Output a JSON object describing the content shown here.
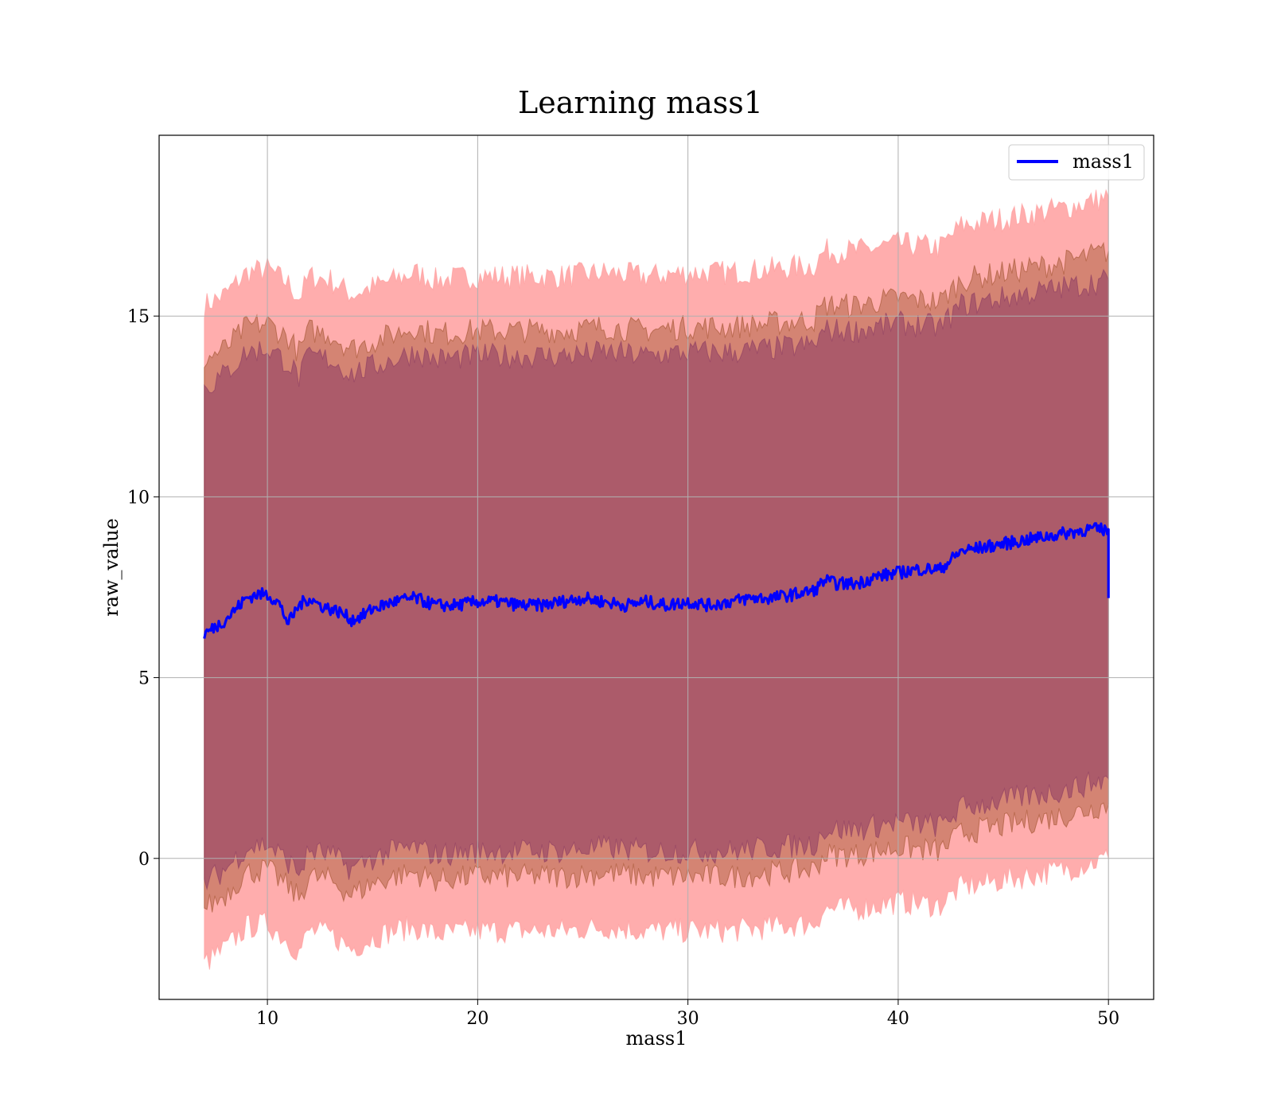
{
  "chart_data": {
    "type": "line",
    "title": "Learning mass1",
    "xlabel": "mass1",
    "ylabel": "raw_value",
    "xlim": [
      4.85,
      52.15
    ],
    "ylim": [
      -3.9,
      20.0
    ],
    "xticks": [
      10,
      20,
      30,
      40,
      50
    ],
    "xtick_labels": [
      "10",
      "20",
      "30",
      "40",
      "50"
    ],
    "yticks": [
      0,
      5,
      10,
      15
    ],
    "ytick_labels": [
      "0",
      "5",
      "10",
      "15"
    ],
    "grid": true,
    "legend_position": "top-right",
    "colors": {
      "line": "#0000ff",
      "band": "#ff0000",
      "band_upper": "#ff9999",
      "band_inner": "#8b3a62",
      "band_mid": "#a0522d",
      "grid": "#b0b0b0",
      "axes": "#000000"
    },
    "series": [
      {
        "name": "mass1",
        "x": [
          7.0,
          7.5,
          8.0,
          8.5,
          9.0,
          9.5,
          10.0,
          10.5,
          11.0,
          11.5,
          12.0,
          12.5,
          13.0,
          13.5,
          14.0,
          14.5,
          15.0,
          16.0,
          17.0,
          18.0,
          19.0,
          20.0,
          21.0,
          22.0,
          23.0,
          24.0,
          25.0,
          26.0,
          27.0,
          28.0,
          29.0,
          30.0,
          31.0,
          32.0,
          33.0,
          34.0,
          35.0,
          36.0,
          36.5,
          37.0,
          38.0,
          39.0,
          40.0,
          41.0,
          42.0,
          43.0,
          44.0,
          45.0,
          46.0,
          47.0,
          48.0,
          49.0,
          50.0
        ],
        "y": [
          6.2,
          6.4,
          6.6,
          6.9,
          7.2,
          7.3,
          7.3,
          7.1,
          6.5,
          7.0,
          7.2,
          7.0,
          6.9,
          6.8,
          6.6,
          6.7,
          6.9,
          7.1,
          7.2,
          7.0,
          7.0,
          7.1,
          7.1,
          7.0,
          7.0,
          7.1,
          7.2,
          7.1,
          7.0,
          7.1,
          7.0,
          7.1,
          7.0,
          7.1,
          7.2,
          7.2,
          7.3,
          7.4,
          7.7,
          7.6,
          7.6,
          7.8,
          7.9,
          8.0,
          8.0,
          8.5,
          8.6,
          8.7,
          8.8,
          8.9,
          9.0,
          9.1,
          9.1
        ],
        "end_drop": 7.2
      }
    ],
    "bands": [
      {
        "role": "outer",
        "x": [
          7.0,
          8.0,
          9.0,
          10.0,
          11.0,
          11.5,
          12.0,
          13.0,
          14.0,
          15.0,
          16.0,
          17.0,
          18.0,
          20.0,
          22.0,
          24.0,
          26.0,
          28.0,
          30.0,
          32.0,
          34.0,
          36.0,
          36.5,
          38.0,
          40.0,
          42.0,
          43.0,
          44.0,
          46.0,
          48.0,
          50.0
        ],
        "upper": [
          15.3,
          15.6,
          16.2,
          16.3,
          15.9,
          15.5,
          16.1,
          16.0,
          15.6,
          15.8,
          16.0,
          16.2,
          16.0,
          16.1,
          16.1,
          16.1,
          16.2,
          16.1,
          16.2,
          16.2,
          16.3,
          16.4,
          16.8,
          16.8,
          17.0,
          16.9,
          17.5,
          17.6,
          17.8,
          18.0,
          18.3
        ],
        "lower": [
          -2.9,
          -2.5,
          -1.9,
          -1.8,
          -2.3,
          -2.6,
          -2.0,
          -2.1,
          -2.5,
          -2.2,
          -2.0,
          -1.9,
          -2.1,
          -2.0,
          -2.0,
          -2.0,
          -1.9,
          -2.0,
          -2.0,
          -2.0,
          -1.9,
          -1.8,
          -1.4,
          -1.4,
          -1.2,
          -1.3,
          -0.8,
          -0.7,
          -0.5,
          -0.3,
          0.0
        ]
      },
      {
        "role": "mid",
        "x": [
          7.0,
          8.0,
          9.0,
          10.0,
          11.0,
          11.5,
          12.0,
          13.0,
          14.0,
          15.0,
          16.0,
          17.0,
          18.0,
          20.0,
          22.0,
          24.0,
          26.0,
          28.0,
          30.0,
          32.0,
          34.0,
          36.0,
          36.5,
          38.0,
          40.0,
          42.0,
          43.0,
          44.0,
          46.0,
          48.0,
          50.0
        ],
        "upper": [
          13.8,
          14.1,
          14.7,
          14.8,
          14.4,
          14.0,
          14.6,
          14.5,
          14.1,
          14.3,
          14.5,
          14.7,
          14.5,
          14.6,
          14.6,
          14.6,
          14.7,
          14.6,
          14.7,
          14.7,
          14.8,
          14.9,
          15.3,
          15.3,
          15.5,
          15.4,
          16.0,
          16.1,
          16.3,
          16.5,
          16.8
        ],
        "lower": [
          -1.4,
          -1.0,
          -0.4,
          -0.3,
          -0.8,
          -1.1,
          -0.5,
          -0.6,
          -1.0,
          -0.7,
          -0.5,
          -0.4,
          -0.6,
          -0.5,
          -0.5,
          -0.5,
          -0.4,
          -0.5,
          -0.5,
          -0.5,
          -0.4,
          -0.3,
          0.1,
          0.1,
          0.3,
          0.2,
          0.7,
          0.8,
          1.0,
          1.2,
          1.5
        ]
      },
      {
        "role": "inner",
        "x": [
          7.0,
          8.0,
          9.0,
          10.0,
          11.0,
          11.5,
          12.0,
          13.0,
          14.0,
          15.0,
          16.0,
          17.0,
          18.0,
          20.0,
          22.0,
          24.0,
          26.0,
          28.0,
          30.0,
          32.0,
          34.0,
          36.0,
          36.5,
          38.0,
          40.0,
          42.0,
          43.0,
          44.0,
          46.0,
          48.0,
          50.0
        ],
        "upper": [
          13.0,
          13.4,
          14.0,
          14.1,
          13.7,
          13.3,
          13.9,
          13.8,
          13.4,
          13.6,
          13.8,
          14.0,
          13.8,
          13.9,
          13.9,
          13.9,
          14.0,
          13.9,
          14.0,
          14.0,
          14.1,
          14.2,
          14.6,
          14.6,
          14.8,
          14.7,
          15.3,
          15.4,
          15.6,
          15.8,
          16.0
        ],
        "lower": [
          -0.7,
          -0.3,
          0.3,
          0.4,
          -0.1,
          -0.4,
          0.2,
          0.1,
          -0.3,
          0.0,
          0.2,
          0.3,
          0.1,
          0.2,
          0.2,
          0.2,
          0.3,
          0.2,
          0.2,
          0.2,
          0.3,
          0.4,
          0.8,
          0.8,
          1.0,
          0.9,
          1.4,
          1.5,
          1.7,
          1.9,
          2.2
        ]
      }
    ]
  }
}
